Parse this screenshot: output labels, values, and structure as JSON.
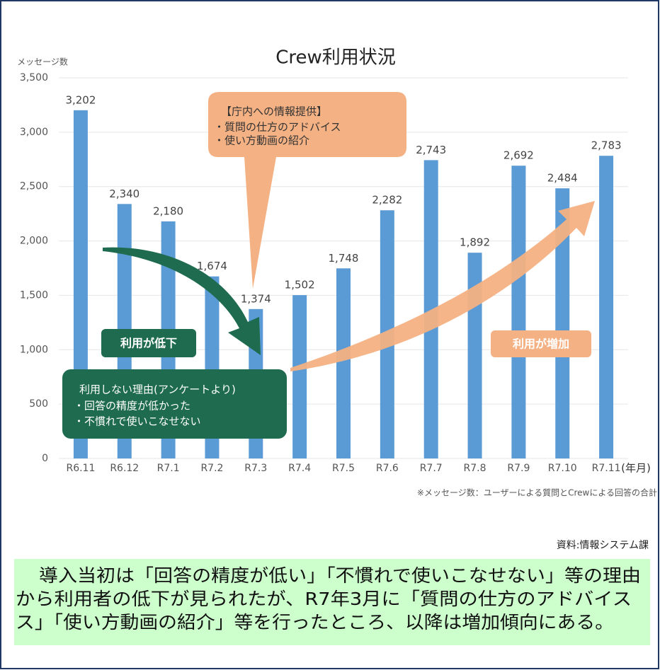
{
  "chart_data": {
    "type": "bar",
    "title": "Crew利用状況",
    "y_label": "メッセージ数",
    "x_unit": "(年月)",
    "categories": [
      "R6.11",
      "R6.12",
      "R7.1",
      "R7.2",
      "R7.3",
      "R7.4",
      "R7.5",
      "R7.6",
      "R7.7",
      "R7.8",
      "R7.9",
      "R7.10",
      "R7.11"
    ],
    "values": [
      3202,
      2340,
      2180,
      1674,
      1374,
      1502,
      1748,
      2282,
      2743,
      1892,
      2692,
      2484,
      2783
    ],
    "value_labels": [
      "3,202",
      "2,340",
      "2,180",
      "1,674",
      "1,374",
      "1,502",
      "1,748",
      "2,282",
      "2,743",
      "1,892",
      "2,692",
      "2,484",
      "2,783"
    ],
    "color": "#5b9bd5",
    "ylim": [
      0,
      3500
    ],
    "yticks": [
      0,
      500,
      {
        "value": 1000,
        "label": "1,000"
      },
      {
        "value": 1500,
        "label": "1,500"
      },
      {
        "value": 2000,
        "label": "2,000"
      },
      {
        "value": 2500,
        "label": "2,500"
      },
      {
        "value": 3000,
        "label": "3,000"
      },
      {
        "value": 3500,
        "label": "3,500"
      }
    ],
    "note": "※メッセージ数：ユーザーによる質問とCrewによる回答の合計",
    "annotations": {
      "callout": [
        "【庁内への情報提供】",
        "・質問の仕方のアドバイス",
        "・使い方動画の紹介"
      ],
      "decrease": "利用が低下",
      "increase": "利用が増加",
      "reasons": [
        "利用しない理由(アンケートより)",
        "・回答の精度が低かった",
        "・不慣れで使いこなせない"
      ]
    }
  },
  "source": "資料:情報システム課",
  "summary": [
    "導入当初は「回答の精度が低い」「不慣れで使いこなせない」等の理由",
    "から利用者の低下が見られたが、R7年3月に「質問の仕方のアドバイス",
    "ス」「使い方動画の紹介」等を行ったところ、以降は増加傾向にある。"
  ]
}
